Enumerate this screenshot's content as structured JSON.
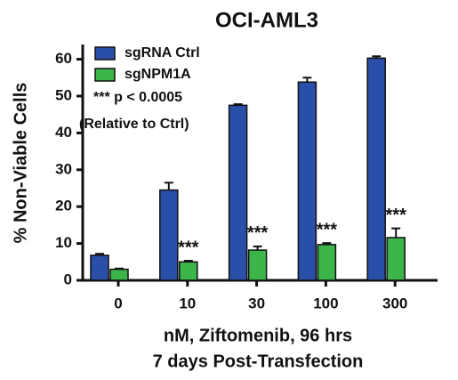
{
  "chart_data": {
    "type": "bar",
    "title": "OCI-AML3",
    "ylabel": "% Non-Viable Cells",
    "xlabel": [
      "nM, Ziftomenib, 96 hrs",
      "7 days Post-Transfection"
    ],
    "categories": [
      "0",
      "10",
      "30",
      "100",
      "300"
    ],
    "series": [
      {
        "name": "sgRNA Ctrl",
        "color": "#2a4fa8",
        "values": [
          6.8,
          24.5,
          47.5,
          53.8,
          60.3
        ],
        "errors": [
          0.4,
          2.0,
          0.3,
          1.2,
          0.5
        ]
      },
      {
        "name": "sgNPM1A",
        "color": "#3cb54a",
        "values": [
          3.0,
          5.0,
          8.2,
          9.7,
          11.6
        ],
        "errors": [
          0.2,
          0.3,
          1.0,
          0.4,
          2.5
        ],
        "significance": [
          null,
          "***",
          "***",
          "***",
          "***"
        ]
      }
    ],
    "annotations": [
      "*** p < 0.0005",
      "(Relative to Ctrl)"
    ],
    "ylim": [
      0,
      64
    ],
    "yticks": [
      0,
      10,
      20,
      30,
      40,
      50,
      60
    ]
  }
}
